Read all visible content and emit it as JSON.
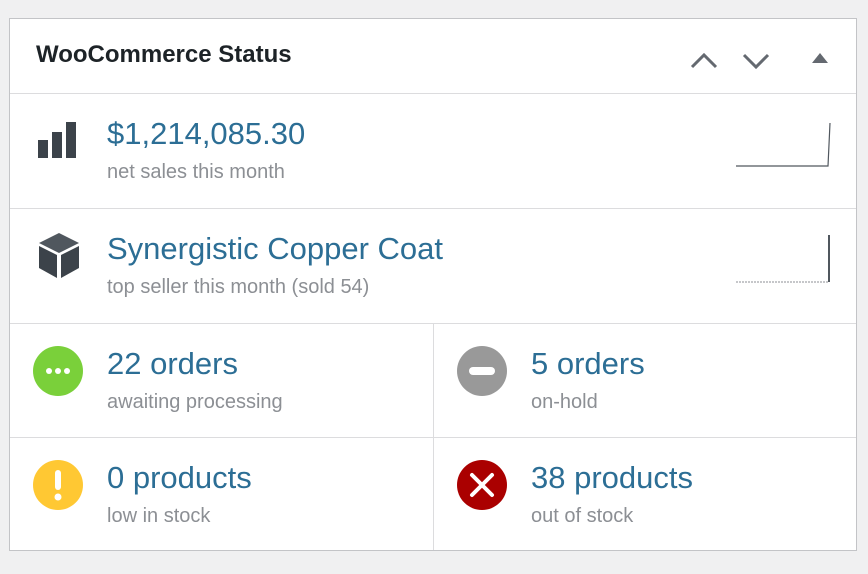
{
  "header": {
    "title": "WooCommerce Status"
  },
  "rows": [
    {
      "main": "$1,214,085.30",
      "sub": "net sales this month"
    },
    {
      "main": "Synergistic Copper Coat",
      "sub": "top seller this month (sold 54)"
    }
  ],
  "cells": [
    {
      "main": "22 orders",
      "sub": "awaiting processing"
    },
    {
      "main": "5 orders",
      "sub": "on-hold"
    },
    {
      "main": "0 products",
      "sub": "low in stock"
    },
    {
      "main": "38 products",
      "sub": "out of stock"
    }
  ]
}
